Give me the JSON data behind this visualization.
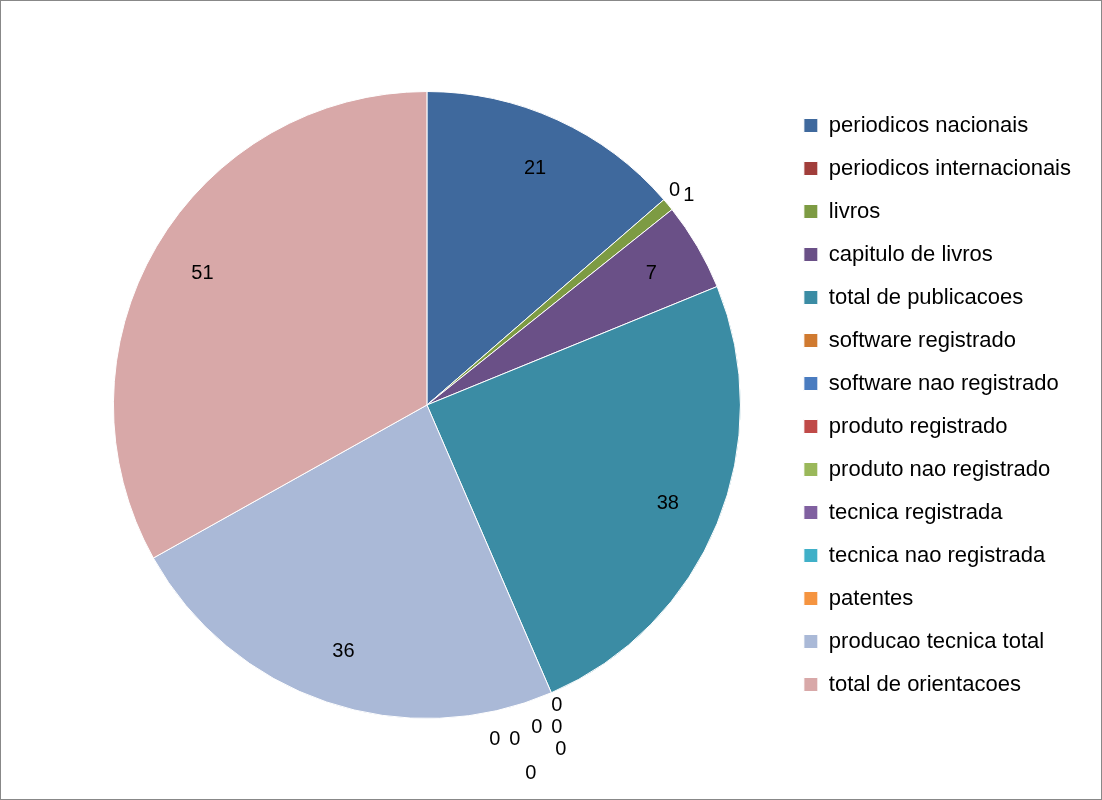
{
  "chart_data": {
    "type": "pie",
    "categories": [
      "periodicos nacionais",
      "periodicos internacionais",
      "livros",
      "capitulo de livros",
      "total de publicacoes",
      "software registrado",
      "software nao registrado",
      "produto registrado",
      "produto nao registrado",
      "tecnica registrada",
      "tecnica nao registrada",
      "patentes",
      "producao tecnica total",
      "total de orientacoes"
    ],
    "values": [
      21,
      0,
      1,
      7,
      38,
      0,
      0,
      0,
      0,
      0,
      0,
      0,
      36,
      51
    ],
    "colors": [
      "#3f699d",
      "#a13e3b",
      "#7d9b43",
      "#6a5087",
      "#3b8ca4",
      "#d07a30",
      "#4a7cc0",
      "#c04a48",
      "#9ab85a",
      "#8060a0",
      "#40b0c8",
      "#f59440",
      "#aab9d7",
      "#d8a8a8"
    ],
    "value_labels": [
      "21",
      "0",
      "1",
      "7",
      "38",
      "0",
      "0",
      "0",
      "0",
      "0",
      "0",
      "0",
      "36",
      "51"
    ],
    "legend": "right"
  }
}
